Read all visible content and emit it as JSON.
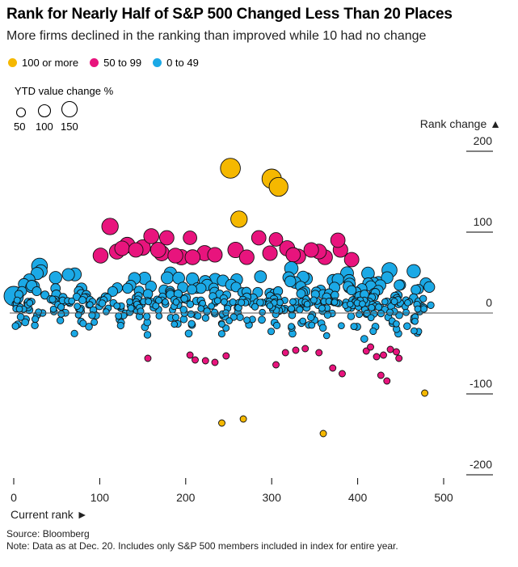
{
  "title": "Rank for Nearly Half of S&P 500 Changed Less Than 20 Places",
  "subtitle": "More firms declined in the ranking than improved while 10 had no change",
  "legend": [
    {
      "label": "100 or more",
      "color": "#f5b800"
    },
    {
      "label": "50 to 99",
      "color": "#e8147d"
    },
    {
      "label": "0 to 49",
      "color": "#1ba9e6"
    }
  ],
  "size_legend": {
    "title": "YTD value change %",
    "labels": [
      "50",
      "100",
      "150"
    ],
    "values": [
      50,
      100,
      150
    ]
  },
  "footer": {
    "source": "Source: Bloomberg",
    "note": "Note: Data as at Dec. 20. Includes only S&P 500 members included in index for entire year."
  },
  "chart_data": {
    "type": "scatter",
    "title": "Rank for Nearly Half of S&P 500 Changed Less Than 20 Places",
    "xlabel": "Current rank ►",
    "ylabel": "Rank change ▲",
    "xlim": [
      0,
      500
    ],
    "ylim": [
      -200,
      200
    ],
    "x_ticks": [
      "0",
      "100",
      "200",
      "300",
      "400",
      "500"
    ],
    "y_ticks": [
      "200",
      "100",
      "0",
      "-100",
      "-200"
    ],
    "notable_points": [
      {
        "x": 252,
        "y": 165,
        "size": 160,
        "group": "100 or more"
      },
      {
        "x": 300,
        "y": 152,
        "size": 150,
        "group": "100 or more"
      },
      {
        "x": 308,
        "y": 142,
        "size": 140,
        "group": "100 or more"
      },
      {
        "x": 262,
        "y": 102,
        "size": 100,
        "group": "100 or more"
      },
      {
        "x": 242,
        "y": -150,
        "size": 5,
        "group": "100 or more"
      },
      {
        "x": 267,
        "y": -145,
        "size": 5,
        "group": "100 or more"
      },
      {
        "x": 360,
        "y": -163,
        "size": 5,
        "group": "100 or more"
      },
      {
        "x": 478,
        "y": -113,
        "size": 5,
        "group": "100 or more"
      },
      {
        "x": 112,
        "y": 93,
        "size": 100,
        "group": "50 to 99"
      },
      {
        "x": 160,
        "y": 81,
        "size": 80,
        "group": "50 to 99"
      },
      {
        "x": 178,
        "y": 79,
        "size": 70,
        "group": "50 to 99"
      },
      {
        "x": 205,
        "y": 79,
        "size": 60,
        "group": "50 to 99"
      },
      {
        "x": 285,
        "y": 79,
        "size": 70,
        "group": "50 to 99"
      },
      {
        "x": 305,
        "y": 77,
        "size": 60,
        "group": "50 to 99"
      },
      {
        "x": 377,
        "y": 76,
        "size": 70,
        "group": "50 to 99"
      },
      {
        "x": 0,
        "y": 7,
        "size": 150,
        "group": "0 to 49"
      },
      {
        "x": 30,
        "y": 44,
        "size": 90,
        "group": "0 to 49"
      },
      {
        "x": 437,
        "y": 39,
        "size": 80,
        "group": "0 to 49"
      }
    ],
    "distribution_note": "Approx. 475 firms; rank change ranges from about -165 to +165; most firms within ±50"
  }
}
